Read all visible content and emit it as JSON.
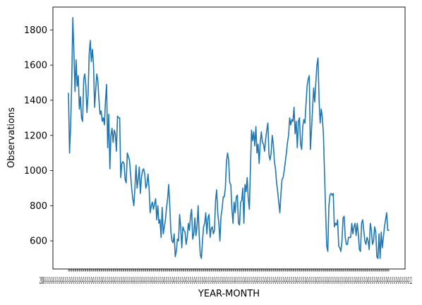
{
  "chart_data": {
    "type": "line",
    "title": "",
    "xlabel": "YEAR-MONTH",
    "ylabel": "Observations",
    "ylim": [
      440,
      1930
    ],
    "yticks": [
      600,
      800,
      1000,
      1200,
      1400,
      1600,
      1800
    ],
    "grid": false,
    "legend": "none",
    "line_color": "#1f77b4",
    "xtick_label_overlap_text": "2008-0-0-0-0-0-0-0-0-0-0-0-0-0-0-0-0-0-0-0-0-0-0-0-0-0-0-0-0-0-0-0-0-0-0-0-0-0-0-0-0-0-0-0-0-0-0-0-0-0-0-0-0-0-0-0-0-0-0-0-0-0-0-0-0-0-0-0-0-0-0-0-0-0-0-0-0-0-0-0-0-0-0-0-0-0-0-0-0-0-0-0-0-0-0-0-0-0-0-0-0-0-0-0-0-0-0-0-0-0-0-0-0-0-0-0-0-0-0-0-0-0-0-0-0-0-0-0-0-0-0-0-0-0-0-0-0-0-0-0-0-0-0-0-0-0-0-0-0-0-0-0-0-0-0-0-0-0-0-0-0-0-0-0-0-0-0-0-0-0-0-0-0-0-0-0-0-0-0-0-0-0-0-0-0-11",
    "series": [
      {
        "values": [
          1440,
          1100,
          1250,
          1500,
          1870,
          1680,
          1450,
          1630,
          1480,
          1540,
          1350,
          1420,
          1300,
          1280,
          1520,
          1550,
          1480,
          1330,
          1430,
          1660,
          1740,
          1620,
          1690,
          1600,
          1360,
          1460,
          1550,
          1510,
          1400,
          1320,
          1340,
          1280,
          1300,
          1260,
          1400,
          1490,
          1130,
          1320,
          1010,
          1200,
          1240,
          1160,
          1230,
          1210,
          1110,
          1310,
          1300,
          1300,
          960,
          1040,
          1050,
          1040,
          950,
          930,
          1100,
          1080,
          1060,
          980,
          900,
          840,
          800,
          900,
          1030,
          900,
          950,
          1020,
          870,
          960,
          1000,
          1010,
          980,
          900,
          920,
          980,
          900,
          760,
          800,
          820,
          780,
          810,
          840,
          720,
          800,
          700,
          720,
          620,
          790,
          640,
          680,
          720,
          790,
          840,
          920,
          800,
          650,
          600,
          590,
          640,
          510,
          540,
          610,
          600,
          750,
          680,
          560,
          680,
          660,
          650,
          580,
          620,
          700,
          660,
          740,
          780,
          610,
          640,
          730,
          630,
          680,
          800,
          630,
          520,
          500,
          600,
          680,
          700,
          760,
          640,
          730,
          750,
          620,
          670,
          680,
          640,
          660,
          830,
          890,
          760,
          700,
          600,
          740,
          780,
          850,
          850,
          900,
          1050,
          1100,
          1060,
          930,
          920,
          780,
          700,
          820,
          760,
          850,
          860,
          700,
          690,
          820,
          830,
          900,
          700,
          920,
          880,
          960,
          840,
          780,
          1010,
          1230,
          1170,
          1220,
          1140,
          1250,
          1100,
          1150,
          1040,
          1160,
          1220,
          1160,
          1150,
          1110,
          1180,
          1230,
          1270,
          1090,
          1060,
          1100,
          1200,
          1150,
          1050,
          1010,
          930,
          880,
          820,
          760,
          870,
          950,
          960,
          1000,
          1050,
          1100,
          1160,
          1200,
          1300,
          1260,
          1290,
          1280,
          1360,
          1210,
          1280,
          1130,
          1280,
          1300,
          1150,
          1120,
          1250,
          1290,
          1270,
          1380,
          1480,
          1520,
          1540,
          1120,
          1230,
          1350,
          1470,
          1390,
          1500,
          1600,
          1640,
          1400,
          1270,
          1350,
          1300,
          1200,
          980,
          770,
          570,
          540,
          800,
          860,
          870,
          860,
          870,
          680,
          700,
          690,
          720,
          570,
          560,
          540,
          600,
          730,
          740,
          620,
          580,
          580,
          620,
          620,
          620,
          700,
          640,
          680,
          700,
          630,
          700,
          640,
          550,
          540,
          700,
          720,
          660,
          600,
          580,
          620,
          600,
          550,
          700,
          660,
          580,
          600,
          680,
          650,
          510,
          500,
          640,
          500,
          650,
          560,
          620,
          680,
          720,
          760,
          660,
          660
        ]
      }
    ]
  }
}
